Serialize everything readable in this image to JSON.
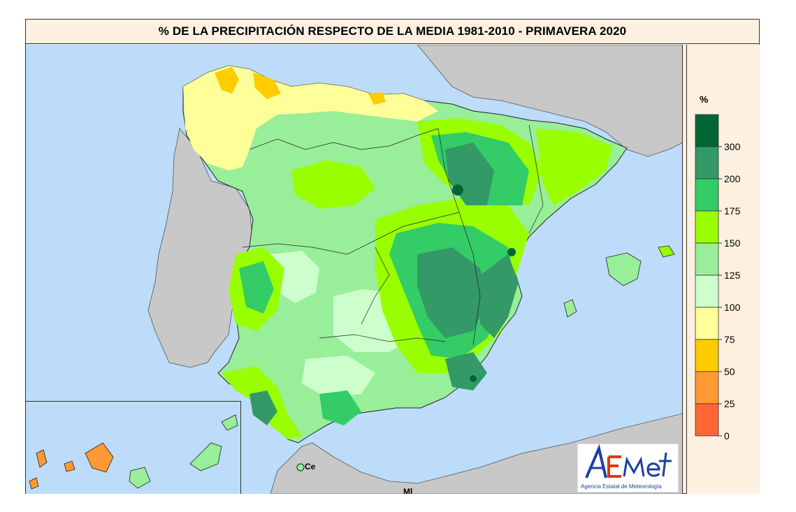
{
  "title": "% DE LA PRECIPITACIÓN RESPECTO DE LA MEDIA 1981-2010 - PRIMAVERA 2020",
  "legend": {
    "unit": "%",
    "classes": [
      {
        "color": "#006633"
      },
      {
        "color": "#339966"
      },
      {
        "color": "#33cc66"
      },
      {
        "color": "#99ff00"
      },
      {
        "color": "#99ee99"
      },
      {
        "color": "#ccffcc"
      },
      {
        "color": "#ffff99"
      },
      {
        "color": "#ffcc00"
      },
      {
        "color": "#ff9933"
      },
      {
        "color": "#ff6633"
      }
    ],
    "tick_labels": [
      "300",
      "200",
      "175",
      "150",
      "125",
      "100",
      "75",
      "50",
      "25",
      "0"
    ]
  },
  "places": {
    "ceuta": "Ce",
    "melilla": "Ml"
  },
  "logo": {
    "name": "AEmet",
    "subtitle": "Agencia Estatal de Meteorología"
  },
  "colors": {
    "sea": "#bcdcf9",
    "foreign_land": "#c8c8c8",
    "panel_background": "#fdf0e0"
  }
}
